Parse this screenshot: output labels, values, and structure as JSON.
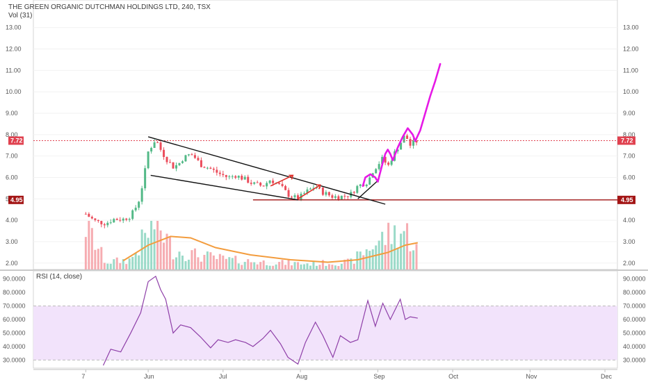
{
  "header": {
    "title": "THE GREEN ORGANIC DUTCHMAN HOLDINGS LTD, 240, TSX",
    "volume_label": "Vol (31)",
    "rsi_label": "RSI (14, close)"
  },
  "colors": {
    "up": "#53b987",
    "down": "#eb4d5c",
    "volume_up": "#8fd6c2",
    "volume_down": "#f5a3a8",
    "volume_ma": "#f39c3d",
    "rsi_line": "#8e3fa8",
    "rsi_band": "#f2e3fb",
    "last_price": "#e0414f",
    "support": "#a31515",
    "projection": "#e619e6",
    "arrows": "#e0302a",
    "trendlines": "#111111"
  },
  "chart_data": [
    {
      "type": "candlestick",
      "title": "THE GREEN ORGANIC DUTCHMAN HOLDINGS LTD, 240, TSX",
      "ylim": [
        1.7,
        13.9
      ],
      "y_ticks": [
        "13.00",
        "12.00",
        "11.00",
        "10.00",
        "9.00",
        "8.00",
        "7.00",
        "6.00",
        "5.00",
        "4.00",
        "3.00",
        "2.00"
      ],
      "x_ticks": [
        "7",
        "Jun",
        "Jul",
        "Aug",
        "Sep",
        "Oct",
        "Nov",
        "Dec"
      ],
      "last_price": "7.72",
      "support_level": "4.95",
      "price_path": [
        [
          "2018-05-07",
          4.3
        ],
        [
          "2018-05-09",
          4.1
        ],
        [
          "2018-05-11",
          3.95
        ],
        [
          "2018-05-15",
          3.85
        ],
        [
          "2018-05-18",
          4.05
        ],
        [
          "2018-05-22",
          4.05
        ],
        [
          "2018-05-25",
          4.2
        ],
        [
          "2018-05-28",
          4.8
        ],
        [
          "2018-05-30",
          5.8
        ],
        [
          "2018-06-01",
          7.2
        ],
        [
          "2018-06-04",
          7.8
        ],
        [
          "2018-06-06",
          7.3
        ],
        [
          "2018-06-08",
          6.9
        ],
        [
          "2018-06-11",
          6.5
        ],
        [
          "2018-06-13",
          6.6
        ],
        [
          "2018-06-15",
          6.9
        ],
        [
          "2018-06-18",
          7.1
        ],
        [
          "2018-06-20",
          6.9
        ],
        [
          "2018-06-22",
          6.6
        ],
        [
          "2018-06-26",
          6.4
        ],
        [
          "2018-06-29",
          6.2
        ],
        [
          "2018-07-03",
          6.0
        ],
        [
          "2018-07-06",
          6.1
        ],
        [
          "2018-07-10",
          5.9
        ],
        [
          "2018-07-13",
          5.7
        ],
        [
          "2018-07-17",
          5.6
        ],
        [
          "2018-07-20",
          5.9
        ],
        [
          "2018-07-24",
          5.6
        ],
        [
          "2018-07-27",
          5.2
        ],
        [
          "2018-07-31",
          5.0
        ],
        [
          "2018-08-03",
          5.3
        ],
        [
          "2018-08-07",
          5.6
        ],
        [
          "2018-08-10",
          5.3
        ],
        [
          "2018-08-14",
          5.1
        ],
        [
          "2018-08-17",
          5.1
        ],
        [
          "2018-08-21",
          5.2
        ],
        [
          "2018-08-24",
          5.6
        ],
        [
          "2018-08-28",
          5.8
        ],
        [
          "2018-08-30",
          6.3
        ],
        [
          "2018-09-03",
          6.9
        ],
        [
          "2018-09-05",
          6.5
        ],
        [
          "2018-09-07",
          7.0
        ],
        [
          "2018-09-10",
          7.6
        ],
        [
          "2018-09-12",
          8.0
        ],
        [
          "2018-09-14",
          7.5
        ],
        [
          "2018-09-17",
          7.72
        ]
      ]
    },
    {
      "type": "bar",
      "title": "Vol (31)",
      "volume_path": [
        [
          "2018-05-07",
          0.9
        ],
        [
          "2018-05-15",
          0.15
        ],
        [
          "2018-05-25",
          0.2
        ],
        [
          "2018-05-30",
          0.6
        ],
        [
          "2018-06-04",
          1.0
        ],
        [
          "2018-06-11",
          0.4
        ],
        [
          "2018-06-20",
          0.3
        ],
        [
          "2018-07-03",
          0.2
        ],
        [
          "2018-07-17",
          0.15
        ],
        [
          "2018-08-03",
          0.12
        ],
        [
          "2018-08-21",
          0.15
        ],
        [
          "2018-08-30",
          0.5
        ],
        [
          "2018-09-05",
          0.7
        ],
        [
          "2018-09-12",
          0.8
        ],
        [
          "2018-09-17",
          0.4
        ]
      ],
      "volume_ma": [
        [
          "2018-05-22",
          0.18
        ],
        [
          "2018-06-01",
          0.5
        ],
        [
          "2018-06-10",
          0.68
        ],
        [
          "2018-06-18",
          0.65
        ],
        [
          "2018-06-28",
          0.45
        ],
        [
          "2018-07-12",
          0.3
        ],
        [
          "2018-07-28",
          0.2
        ],
        [
          "2018-08-12",
          0.15
        ],
        [
          "2018-08-24",
          0.2
        ],
        [
          "2018-09-05",
          0.35
        ],
        [
          "2018-09-12",
          0.5
        ],
        [
          "2018-09-17",
          0.55
        ]
      ]
    },
    {
      "type": "line",
      "title": "RSI (14, close)",
      "ylim": [
        24,
        96
      ],
      "y_ticks": [
        "90.0000",
        "80.0000",
        "70.0000",
        "60.0000",
        "50.0000",
        "40.0000",
        "30.0000"
      ],
      "band": [
        30,
        70
      ],
      "rsi": [
        [
          "2018-05-14",
          26
        ],
        [
          "2018-05-17",
          38
        ],
        [
          "2018-05-21",
          36
        ],
        [
          "2018-05-25",
          50
        ],
        [
          "2018-05-29",
          65
        ],
        [
          "2018-06-01",
          88
        ],
        [
          "2018-06-04",
          92
        ],
        [
          "2018-06-06",
          82
        ],
        [
          "2018-06-08",
          75
        ],
        [
          "2018-06-11",
          50
        ],
        [
          "2018-06-14",
          56
        ],
        [
          "2018-06-18",
          54
        ],
        [
          "2018-06-22",
          47
        ],
        [
          "2018-06-26",
          39
        ],
        [
          "2018-06-29",
          45
        ],
        [
          "2018-07-03",
          43
        ],
        [
          "2018-07-06",
          45
        ],
        [
          "2018-07-10",
          43
        ],
        [
          "2018-07-13",
          40
        ],
        [
          "2018-07-17",
          46
        ],
        [
          "2018-07-20",
          52
        ],
        [
          "2018-07-24",
          42
        ],
        [
          "2018-07-27",
          32
        ],
        [
          "2018-07-31",
          27
        ],
        [
          "2018-08-03",
          43
        ],
        [
          "2018-08-07",
          58
        ],
        [
          "2018-08-10",
          48
        ],
        [
          "2018-08-14",
          32
        ],
        [
          "2018-08-17",
          48
        ],
        [
          "2018-08-21",
          43
        ],
        [
          "2018-08-24",
          45
        ],
        [
          "2018-08-28",
          74
        ],
        [
          "2018-08-31",
          55
        ],
        [
          "2018-09-03",
          72
        ],
        [
          "2018-09-06",
          60
        ],
        [
          "2018-09-10",
          75
        ],
        [
          "2018-09-12",
          60
        ],
        [
          "2018-09-14",
          62
        ],
        [
          "2018-09-17",
          61
        ]
      ]
    }
  ]
}
